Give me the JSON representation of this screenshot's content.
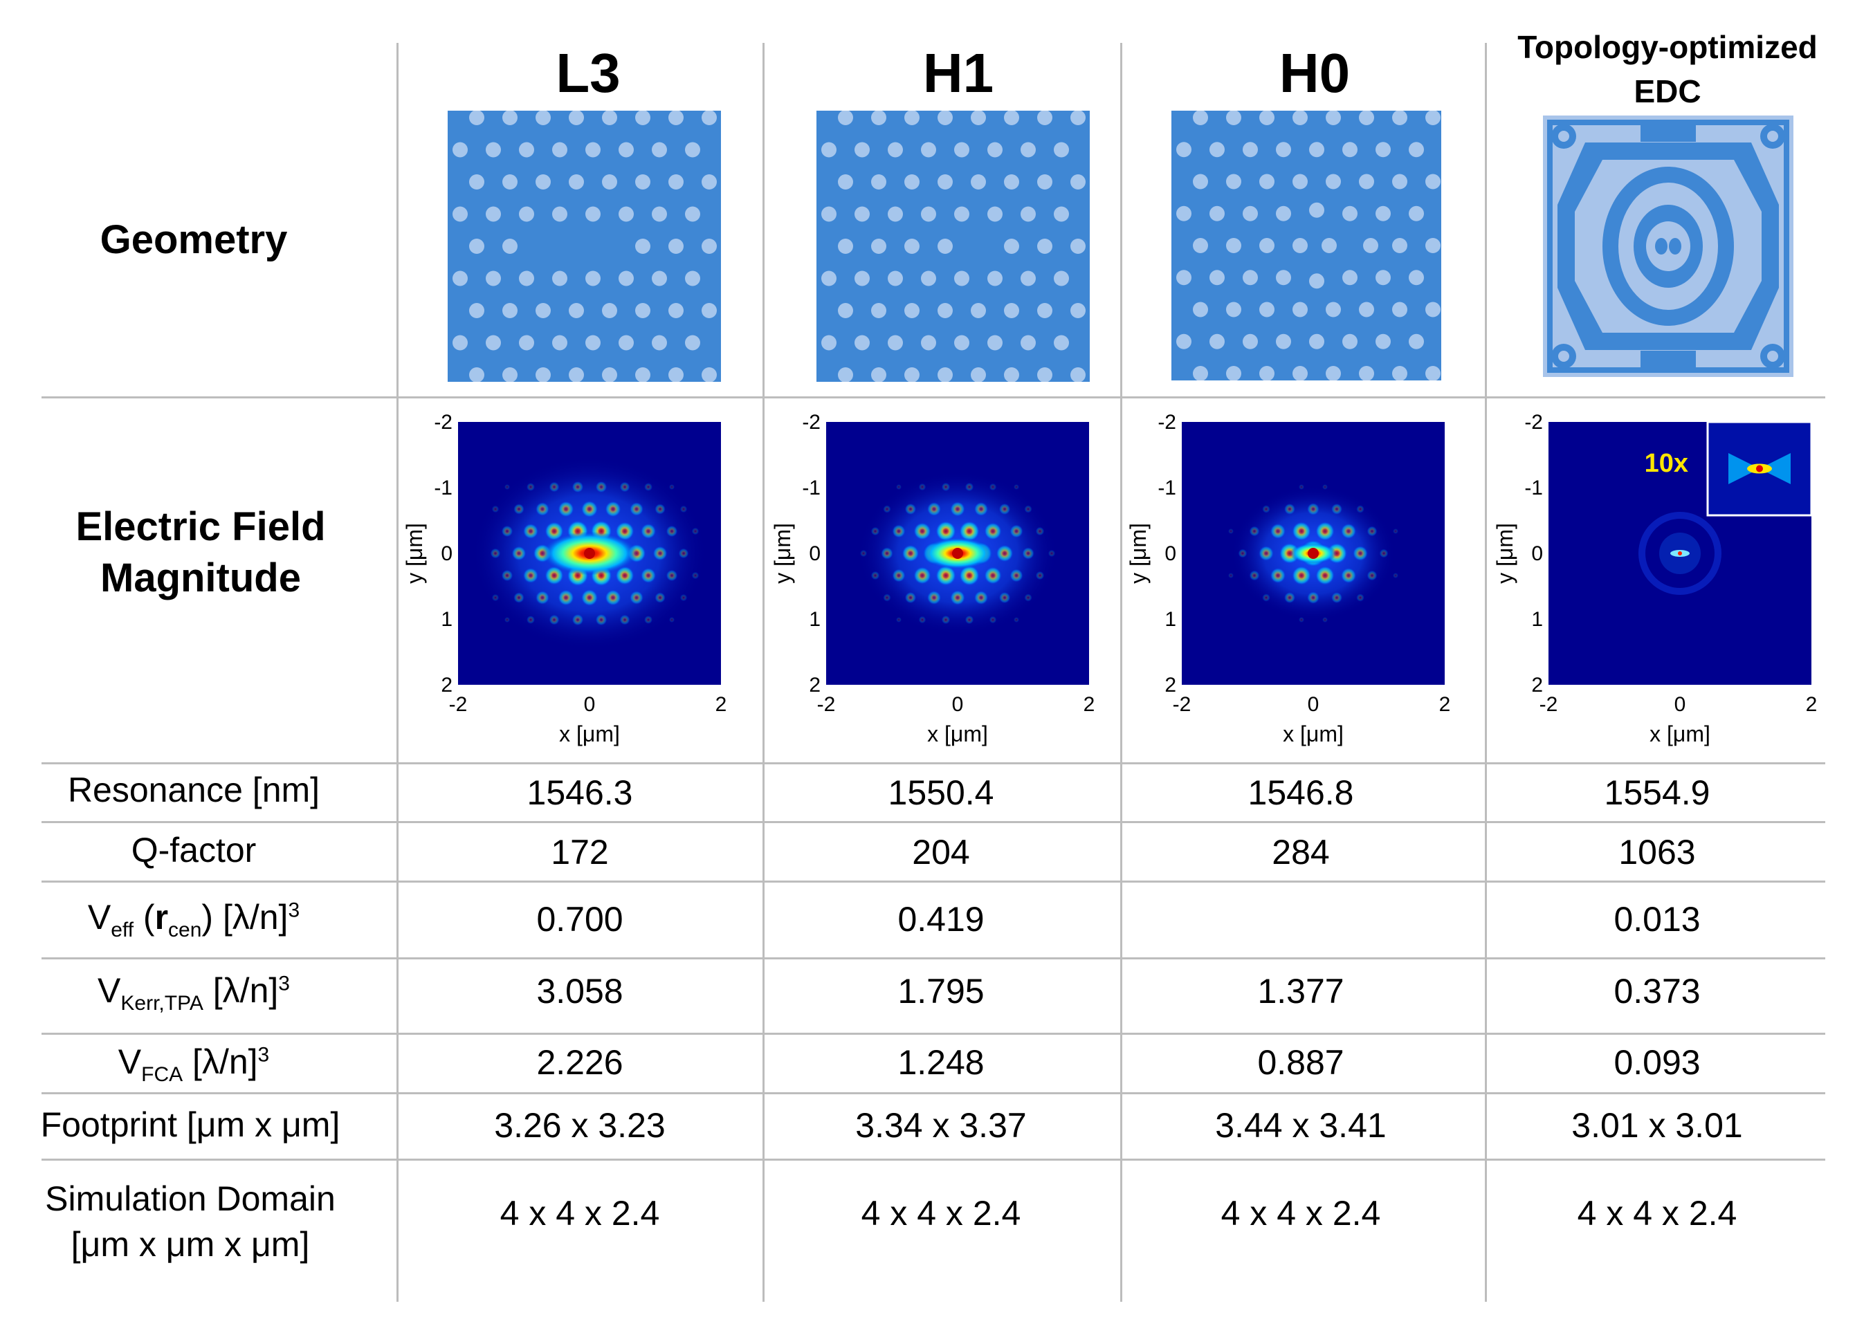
{
  "headers": [
    "L3",
    "H1",
    "H0",
    "Topology-optimized EDC"
  ],
  "row_labels": {
    "geometry": "Geometry",
    "field": "Electric Field Magnitude",
    "resonance": "Resonance [nm]",
    "q": "Q-factor",
    "veff_pre": "V",
    "veff_sub": "eff",
    "veff_r": "r",
    "veff_rsub": "cen",
    "veff_post": "[λ/n]",
    "veff_sup": "3",
    "vkerr_pre": "V",
    "vkerr_sub": "Kerr,TPA",
    "vkerr_post": "[λ/n]",
    "vkerr_sup": "3",
    "vfca_pre": "V",
    "vfca_sub": "FCA",
    "vfca_post": "[λ/n]",
    "vfca_sup": "3",
    "footprint": "Footprint [μm x μm]",
    "domain_l1": "Simulation Domain",
    "domain_l2": "[μm x μm x μm]"
  },
  "columns": [
    {
      "resonance": "1546.3",
      "q": "172",
      "veff": "0.700",
      "vkerr": "3.058",
      "vfca": "2.226",
      "footprint": "3.26 x 3.23",
      "domain": "4 x 4 x 2.4"
    },
    {
      "resonance": "1550.4",
      "q": "204",
      "veff": "0.419",
      "vkerr": "1.795",
      "vfca": "1.248",
      "footprint": "3.34 x 3.37",
      "domain": "4 x 4 x 2.4"
    },
    {
      "resonance": "1546.8",
      "q": "284",
      "veff": "",
      "vkerr": "1.377",
      "vfca": "0.887",
      "footprint": "3.44 x 3.41",
      "domain": "4 x 4 x 2.4"
    },
    {
      "resonance": "1554.9",
      "q": "1063",
      "veff": "0.013",
      "vkerr": "0.373",
      "vfca": "0.093",
      "footprint": "3.01 x 3.01",
      "domain": "4 x 4 x 2.4"
    }
  ],
  "plot_axes": {
    "xlabel": "x [μm]",
    "ylabel": "y [μm]",
    "xticks": [
      "-2",
      "0",
      "2"
    ],
    "yticks": [
      "-2",
      "-1",
      "0",
      "1",
      "2"
    ]
  },
  "inset_label": "10x",
  "colors": {
    "slab": "#3f87d4",
    "hole": "#a6c6ec",
    "field_bg": "#00008f",
    "inset_text": "#ffe600",
    "grid": "#bdbdbd"
  }
}
